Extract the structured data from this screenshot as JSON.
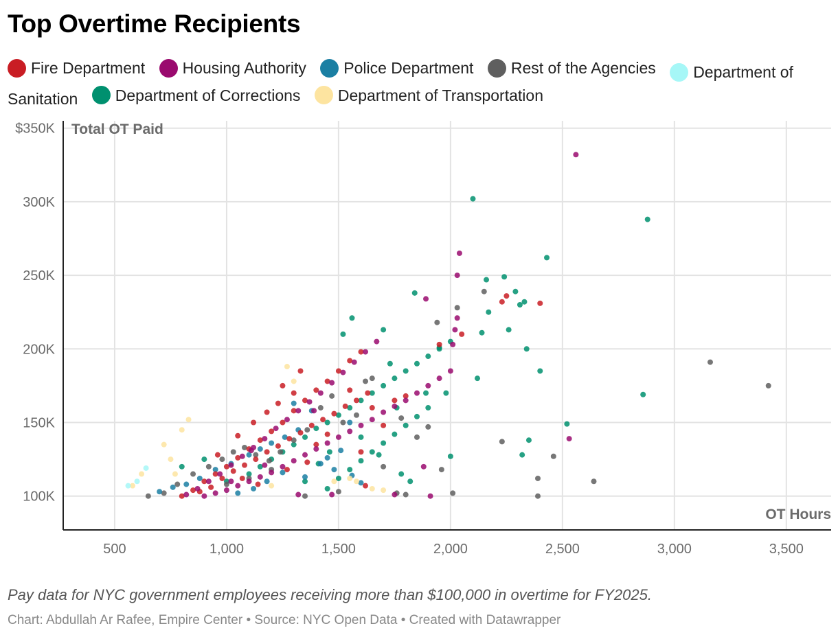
{
  "title": "Top Overtime Recipients",
  "legend": [
    {
      "name": "Fire Department",
      "color": "#c91d24"
    },
    {
      "name": "Housing Authority",
      "color": "#9a0a6e"
    },
    {
      "name": "Police Department",
      "color": "#1b7fa3"
    },
    {
      "name": "Rest of the Agencies",
      "color": "#5f5f5f"
    },
    {
      "name": "Department of Sanitation",
      "color": "#a6f7f7"
    },
    {
      "name": "Department of Corrections",
      "color": "#00906f"
    },
    {
      "name": "Department of Transportation",
      "color": "#fde4a0"
    }
  ],
  "note": "Pay data for NYC government employees receiving more than $100,000 in overtime for FY2025.",
  "credit": "Chart: Abdullah Ar Rafee, Empire Center • Source: NYC Open Data • Created with Datawrapper",
  "chart_data": {
    "type": "scatter",
    "title": "Top Overtime Recipients",
    "xlabel": "OT Hours",
    "ylabel": "Total OT Paid",
    "xlim": [
      270,
      3700
    ],
    "ylim": [
      77000,
      355000
    ],
    "xticks": [
      500,
      1000,
      1500,
      2000,
      2500,
      3000,
      3500
    ],
    "xtick_labels": [
      "500",
      "1,000",
      "1,500",
      "2,000",
      "2,500",
      "3,000",
      "3,500"
    ],
    "yticks": [
      100000,
      150000,
      200000,
      250000,
      300000,
      350000
    ],
    "ytick_labels": [
      "100K",
      "150K",
      "200K",
      "250K",
      "300K",
      "$350K"
    ],
    "grid": true,
    "series": [
      {
        "name": "Fire Department",
        "color": "#c91d24",
        "points": [
          [
            800,
            100000
          ],
          [
            850,
            104000
          ],
          [
            900,
            110000
          ],
          [
            950,
            115000
          ],
          [
            1000,
            120000
          ],
          [
            1050,
            126000
          ],
          [
            1100,
            132000
          ],
          [
            1150,
            138000
          ],
          [
            1200,
            144000
          ],
          [
            1250,
            150000
          ],
          [
            1300,
            158000
          ],
          [
            1350,
            165000
          ],
          [
            1400,
            172000
          ],
          [
            1450,
            178000
          ],
          [
            1500,
            185000
          ],
          [
            1550,
            192000
          ],
          [
            1600,
            198000
          ],
          [
            880,
            103000
          ],
          [
            930,
            106000
          ],
          [
            980,
            112000
          ],
          [
            1030,
            117000
          ],
          [
            1080,
            121000
          ],
          [
            1130,
            125000
          ],
          [
            1180,
            130000
          ],
          [
            1230,
            134000
          ],
          [
            1280,
            139000
          ],
          [
            1330,
            143000
          ],
          [
            1380,
            148000
          ],
          [
            1430,
            152000
          ],
          [
            1480,
            156000
          ],
          [
            1530,
            161000
          ],
          [
            1580,
            165000
          ],
          [
            1630,
            170000
          ],
          [
            1300,
            170000
          ],
          [
            1250,
            175000
          ],
          [
            1330,
            185000
          ],
          [
            1050,
            141000
          ],
          [
            1120,
            150000
          ],
          [
            1180,
            157000
          ],
          [
            1230,
            163000
          ],
          [
            1400,
            135000
          ],
          [
            1450,
            142000
          ],
          [
            1600,
            130000
          ],
          [
            1650,
            160000
          ],
          [
            1750,
            165000
          ],
          [
            1800,
            168000
          ],
          [
            1950,
            203000
          ],
          [
            2050,
            210000
          ],
          [
            2230,
            232000
          ],
          [
            2250,
            236000
          ],
          [
            2400,
            231000
          ],
          [
            1620,
            107000
          ],
          [
            960,
            128000
          ],
          [
            1070,
            112000
          ],
          [
            1140,
            108000
          ],
          [
            1270,
            118000
          ],
          [
            1360,
            123000
          ],
          [
            1700,
            148000
          ],
          [
            1550,
            172000
          ]
        ]
      },
      {
        "name": "Housing Authority",
        "color": "#9a0a6e",
        "points": [
          [
            820,
            101000
          ],
          [
            870,
            105000
          ],
          [
            920,
            110000
          ],
          [
            970,
            115000
          ],
          [
            1020,
            121000
          ],
          [
            1070,
            127000
          ],
          [
            1120,
            133000
          ],
          [
            1170,
            139000
          ],
          [
            1220,
            146000
          ],
          [
            1270,
            152000
          ],
          [
            1320,
            158000
          ],
          [
            1370,
            164000
          ],
          [
            1420,
            170000
          ],
          [
            1470,
            177000
          ],
          [
            1520,
            184000
          ],
          [
            1570,
            191000
          ],
          [
            1620,
            198000
          ],
          [
            1670,
            205000
          ],
          [
            900,
            100000
          ],
          [
            950,
            102000
          ],
          [
            1000,
            104000
          ],
          [
            1050,
            107000
          ],
          [
            1100,
            110000
          ],
          [
            1150,
            113000
          ],
          [
            1200,
            116000
          ],
          [
            1250,
            120000
          ],
          [
            1300,
            124000
          ],
          [
            1350,
            128000
          ],
          [
            1400,
            132000
          ],
          [
            1450,
            136000
          ],
          [
            1500,
            140000
          ],
          [
            1550,
            144000
          ],
          [
            1600,
            148000
          ],
          [
            1650,
            152000
          ],
          [
            1700,
            157000
          ],
          [
            1750,
            161000
          ],
          [
            1800,
            165000
          ],
          [
            1850,
            170000
          ],
          [
            1900,
            175000
          ],
          [
            1950,
            180000
          ],
          [
            2000,
            185000
          ],
          [
            2010,
            203000
          ],
          [
            2020,
            213000
          ],
          [
            2030,
            221000
          ],
          [
            2030,
            250000
          ],
          [
            2040,
            265000
          ],
          [
            2560,
            332000
          ],
          [
            2530,
            139000
          ],
          [
            1890,
            234000
          ],
          [
            1880,
            120000
          ],
          [
            1910,
            100000
          ],
          [
            1750,
            101000
          ],
          [
            1470,
            101000
          ],
          [
            1320,
            101000
          ],
          [
            1110,
            131000
          ],
          [
            1390,
            158000
          ],
          [
            1020,
            110000
          ],
          [
            1170,
            121000
          ]
        ]
      },
      {
        "name": "Police Department",
        "color": "#1b7fa3",
        "points": [
          [
            700,
            103000
          ],
          [
            760,
            106000
          ],
          [
            820,
            108000
          ],
          [
            880,
            112000
          ],
          [
            950,
            118000
          ],
          [
            1020,
            122000
          ],
          [
            1100,
            128000
          ],
          [
            1150,
            132000
          ],
          [
            1200,
            136000
          ],
          [
            1260,
            140000
          ],
          [
            1320,
            145000
          ],
          [
            1380,
            158000
          ],
          [
            1450,
            126000
          ],
          [
            1510,
            131000
          ],
          [
            1560,
            114000
          ],
          [
            1600,
            109000
          ],
          [
            1050,
            102000
          ],
          [
            1120,
            105000
          ],
          [
            1180,
            110000
          ],
          [
            1250,
            116000
          ],
          [
            1300,
            163000
          ],
          [
            1350,
            113000
          ],
          [
            1420,
            122000
          ],
          [
            1480,
            118000
          ],
          [
            1550,
            150000
          ]
        ]
      },
      {
        "name": "Rest of the Agencies",
        "color": "#5f5f5f",
        "points": [
          [
            650,
            100000
          ],
          [
            720,
            102000
          ],
          [
            780,
            108000
          ],
          [
            850,
            115000
          ],
          [
            920,
            120000
          ],
          [
            980,
            125000
          ],
          [
            1030,
            130000
          ],
          [
            1080,
            133000
          ],
          [
            1130,
            128000
          ],
          [
            1190,
            124000
          ],
          [
            1240,
            130000
          ],
          [
            1300,
            138000
          ],
          [
            1360,
            145000
          ],
          [
            1420,
            160000
          ],
          [
            1470,
            168000
          ],
          [
            1520,
            150000
          ],
          [
            1580,
            155000
          ],
          [
            1650,
            180000
          ],
          [
            1700,
            120000
          ],
          [
            1760,
            102000
          ],
          [
            1800,
            101000
          ],
          [
            1850,
            140000
          ],
          [
            1900,
            147000
          ],
          [
            1940,
            218000
          ],
          [
            1960,
            118000
          ],
          [
            2010,
            102000
          ],
          [
            2030,
            228000
          ],
          [
            2150,
            239000
          ],
          [
            2230,
            137000
          ],
          [
            2390,
            112000
          ],
          [
            2390,
            100000
          ],
          [
            2460,
            127000
          ],
          [
            2640,
            110000
          ],
          [
            3160,
            191000
          ],
          [
            3420,
            175000
          ],
          [
            1000,
            108000
          ],
          [
            1100,
            112000
          ],
          [
            1200,
            118000
          ],
          [
            1350,
            100000
          ],
          [
            1500,
            103000
          ],
          [
            1620,
            178000
          ],
          [
            1780,
            153000
          ]
        ]
      },
      {
        "name": "Department of Sanitation",
        "color": "#a6f7f7",
        "points": [
          [
            560,
            107000
          ],
          [
            640,
            119000
          ],
          [
            600,
            110000
          ]
        ]
      },
      {
        "name": "Department of Corrections",
        "color": "#00906f",
        "points": [
          [
            800,
            120000
          ],
          [
            900,
            125000
          ],
          [
            1000,
            110000
          ],
          [
            1100,
            115000
          ],
          [
            1150,
            120000
          ],
          [
            1200,
            125000
          ],
          [
            1250,
            130000
          ],
          [
            1300,
            135000
          ],
          [
            1350,
            140000
          ],
          [
            1400,
            146000
          ],
          [
            1450,
            150000
          ],
          [
            1500,
            155000
          ],
          [
            1550,
            160000
          ],
          [
            1600,
            165000
          ],
          [
            1650,
            170000
          ],
          [
            1700,
            175000
          ],
          [
            1750,
            180000
          ],
          [
            1800,
            185000
          ],
          [
            1850,
            190000
          ],
          [
            1900,
            195000
          ],
          [
            1950,
            200000
          ],
          [
            2000,
            205000
          ],
          [
            1450,
            105000
          ],
          [
            1500,
            112000
          ],
          [
            1550,
            118000
          ],
          [
            1600,
            124000
          ],
          [
            1650,
            130000
          ],
          [
            1700,
            136000
          ],
          [
            1750,
            142000
          ],
          [
            1800,
            148000
          ],
          [
            1850,
            154000
          ],
          [
            1900,
            160000
          ],
          [
            1520,
            210000
          ],
          [
            1560,
            221000
          ],
          [
            1700,
            213000
          ],
          [
            1730,
            190000
          ],
          [
            1840,
            238000
          ],
          [
            1950,
            201000
          ],
          [
            1980,
            170000
          ],
          [
            2000,
            127000
          ],
          [
            2100,
            302000
          ],
          [
            2120,
            180000
          ],
          [
            2140,
            211000
          ],
          [
            2160,
            247000
          ],
          [
            2170,
            225000
          ],
          [
            2240,
            249000
          ],
          [
            2260,
            213000
          ],
          [
            2290,
            239000
          ],
          [
            2310,
            230000
          ],
          [
            2330,
            232000
          ],
          [
            2340,
            200000
          ],
          [
            2350,
            138000
          ],
          [
            2400,
            185000
          ],
          [
            2430,
            262000
          ],
          [
            2520,
            149000
          ],
          [
            2860,
            169000
          ],
          [
            2880,
            288000
          ],
          [
            2320,
            128000
          ],
          [
            1600,
            140000
          ],
          [
            1680,
            128000
          ],
          [
            1780,
            115000
          ],
          [
            1820,
            110000
          ],
          [
            1350,
            110000
          ],
          [
            1410,
            122000
          ],
          [
            1460,
            130000
          ],
          [
            1890,
            170000
          ],
          [
            1760,
            160000
          ]
        ]
      },
      {
        "name": "Department of Transportation",
        "color": "#fde4a0",
        "points": [
          [
            580,
            107000
          ],
          [
            620,
            115000
          ],
          [
            720,
            135000
          ],
          [
            750,
            125000
          ],
          [
            770,
            115000
          ],
          [
            800,
            145000
          ],
          [
            830,
            152000
          ],
          [
            1270,
            188000
          ],
          [
            1300,
            178000
          ],
          [
            1480,
            110000
          ],
          [
            1550,
            112000
          ],
          [
            1580,
            110000
          ],
          [
            1650,
            105000
          ],
          [
            1700,
            104000
          ],
          [
            1200,
            107000
          ]
        ]
      }
    ]
  }
}
